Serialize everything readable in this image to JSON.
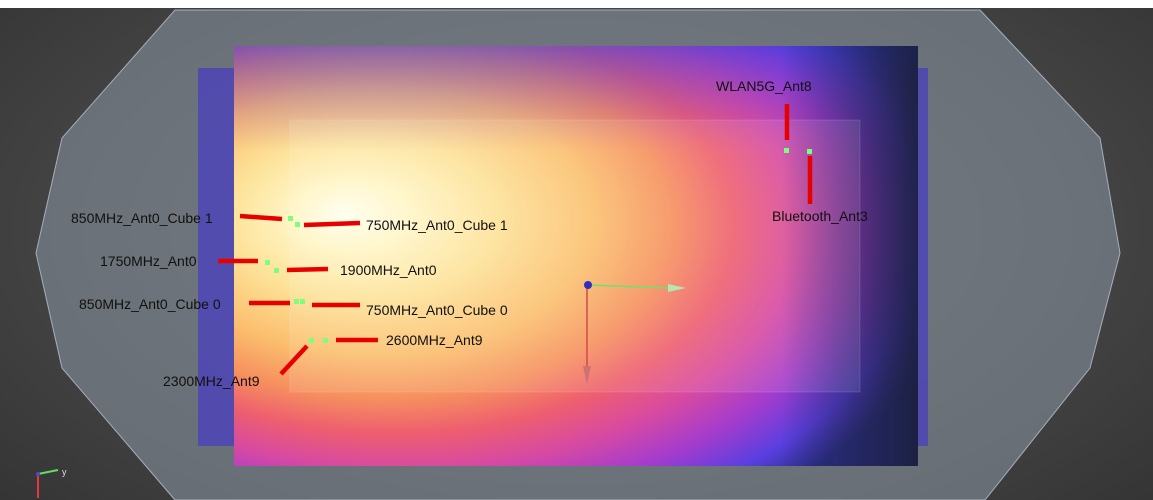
{
  "viewer": {
    "colors": {
      "background": "#4a4a4a",
      "housing": "#8d97a4",
      "callout": "#e60000",
      "antenna_dot": "#7dff7d",
      "heat_hot": "#ffffe0",
      "heat_warm": "#ffb060",
      "heat_mid": "#ef4a6a",
      "heat_cool": "#b03fc8",
      "heat_cold": "#2f3fe0"
    },
    "antennas": [
      {
        "id": "wlan5g",
        "label": "WLAN5G_Ant8"
      },
      {
        "id": "bluetooth",
        "label": "Bluetooth_Ant3"
      },
      {
        "id": "ant0_cube1_850",
        "label": "850MHz_Ant0_Cube 1"
      },
      {
        "id": "ant0_cube1_750",
        "label": "750MHz_Ant0_Cube 1"
      },
      {
        "id": "ant0_1750",
        "label": "1750MHz_Ant0"
      },
      {
        "id": "ant0_1900",
        "label": "1900MHz_Ant0"
      },
      {
        "id": "ant0_cube0_850",
        "label": "850MHz_Ant0_Cube 0"
      },
      {
        "id": "ant0_cube0_750",
        "label": "750MHz_Ant0_Cube 0"
      },
      {
        "id": "ant9_2600",
        "label": "2600MHz_Ant9"
      },
      {
        "id": "ant9_2300",
        "label": "2300MHz_Ant9"
      }
    ],
    "axis_triad": {
      "origin_color": "#3030c0",
      "x_color": "#6de36d",
      "y_color": "#d04a4a"
    },
    "orientation_gizmo": {
      "y_label": "y",
      "x_color": "#5fe05f",
      "z_color": "#e03a3a"
    }
  }
}
